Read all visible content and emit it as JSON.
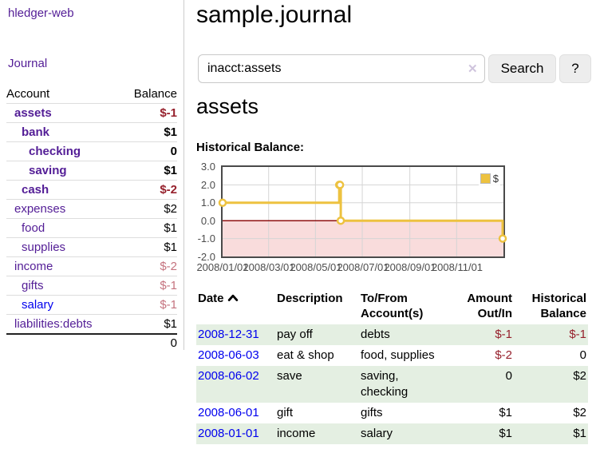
{
  "app": {
    "name": "hledger-web"
  },
  "sidebar": {
    "nav": {
      "journal": "Journal"
    },
    "table": {
      "account_header": "Account",
      "balance_header": "Balance",
      "accounts": [
        {
          "name": "assets",
          "balance": "$-1"
        },
        {
          "name": "bank",
          "balance": "$1"
        },
        {
          "name": "checking",
          "balance": "0"
        },
        {
          "name": "saving",
          "balance": "$1"
        },
        {
          "name": "cash",
          "balance": "$-2"
        },
        {
          "name": "expenses",
          "balance": "$2"
        },
        {
          "name": "food",
          "balance": "$1"
        },
        {
          "name": "supplies",
          "balance": "$1"
        },
        {
          "name": "income",
          "balance": "$-2"
        },
        {
          "name": "gifts",
          "balance": "$-1"
        },
        {
          "name": "salary",
          "balance": "$-1"
        },
        {
          "name": "liabilities:debts",
          "balance": "$1"
        }
      ],
      "total": "0"
    }
  },
  "main": {
    "title": "sample.journal",
    "search": {
      "value": "inacct:assets",
      "clear_icon": "✕",
      "button": "Search",
      "help_button": "?"
    },
    "account_heading": "assets",
    "chart_label": "Historical Balance:"
  },
  "chart_data": {
    "type": "line",
    "step": true,
    "title": "Historical Balance",
    "series": [
      {
        "name": "$",
        "points": [
          {
            "date": "2008-01-01",
            "value": 1
          },
          {
            "date": "2008-06-01",
            "value": 2
          },
          {
            "date": "2008-06-02",
            "value": 2
          },
          {
            "date": "2008-06-03",
            "value": 0
          },
          {
            "date": "2008-12-31",
            "value": -1
          }
        ]
      }
    ],
    "xlim": [
      "2008-01-01",
      "2009-01-01"
    ],
    "ylim": [
      -2,
      3
    ],
    "y_ticks": [
      "3.0",
      "2.0",
      "1.0",
      "0.0",
      "-1.0",
      "-2.0"
    ],
    "x_ticks": [
      "2008/01/01",
      "2008/03/01",
      "2008/05/01",
      "2008/07/01",
      "2008/09/01",
      "2008/11/01"
    ],
    "y_gridlines": [
      2,
      1,
      -1
    ],
    "x_gridline_dates": [
      "2008-03-01",
      "2008-05-01",
      "2008-07-01",
      "2008-09-01",
      "2008-11-01"
    ],
    "legend_position": "top-right",
    "grid": true,
    "colors": {
      "series": "#edc240",
      "negative_region": "#f9dcdc",
      "zero_line": "#8f1010",
      "grid": "#d5d5d5",
      "border": "#4a4a4a"
    }
  },
  "register": {
    "headers": {
      "date": "Date",
      "description": "Description",
      "to_from": "To/From Account(s)",
      "amount": "Amount Out/In",
      "balance": "Historical Balance"
    },
    "rows": [
      {
        "date": "2008-12-31",
        "description": "pay off",
        "accounts": "debts",
        "amount": "$-1",
        "balance": "$-1"
      },
      {
        "date": "2008-06-03",
        "description": "eat & shop",
        "accounts": "food, supplies",
        "amount": "$-2",
        "balance": "0"
      },
      {
        "date": "2008-06-02",
        "description": "save",
        "accounts": "saving, checking",
        "amount": "0",
        "balance": "$2"
      },
      {
        "date": "2008-06-01",
        "description": "gift",
        "accounts": "gifts",
        "amount": "$1",
        "balance": "$2"
      },
      {
        "date": "2008-01-01",
        "description": "income",
        "accounts": "salary",
        "amount": "$1",
        "balance": "$1"
      }
    ]
  },
  "colors": {
    "link_purple": "#531d96",
    "link_blue": "#0000ee",
    "negative_dark": "#96202c",
    "negative_light": "#c5737f",
    "row_stripe_green": "#e4efe2"
  }
}
